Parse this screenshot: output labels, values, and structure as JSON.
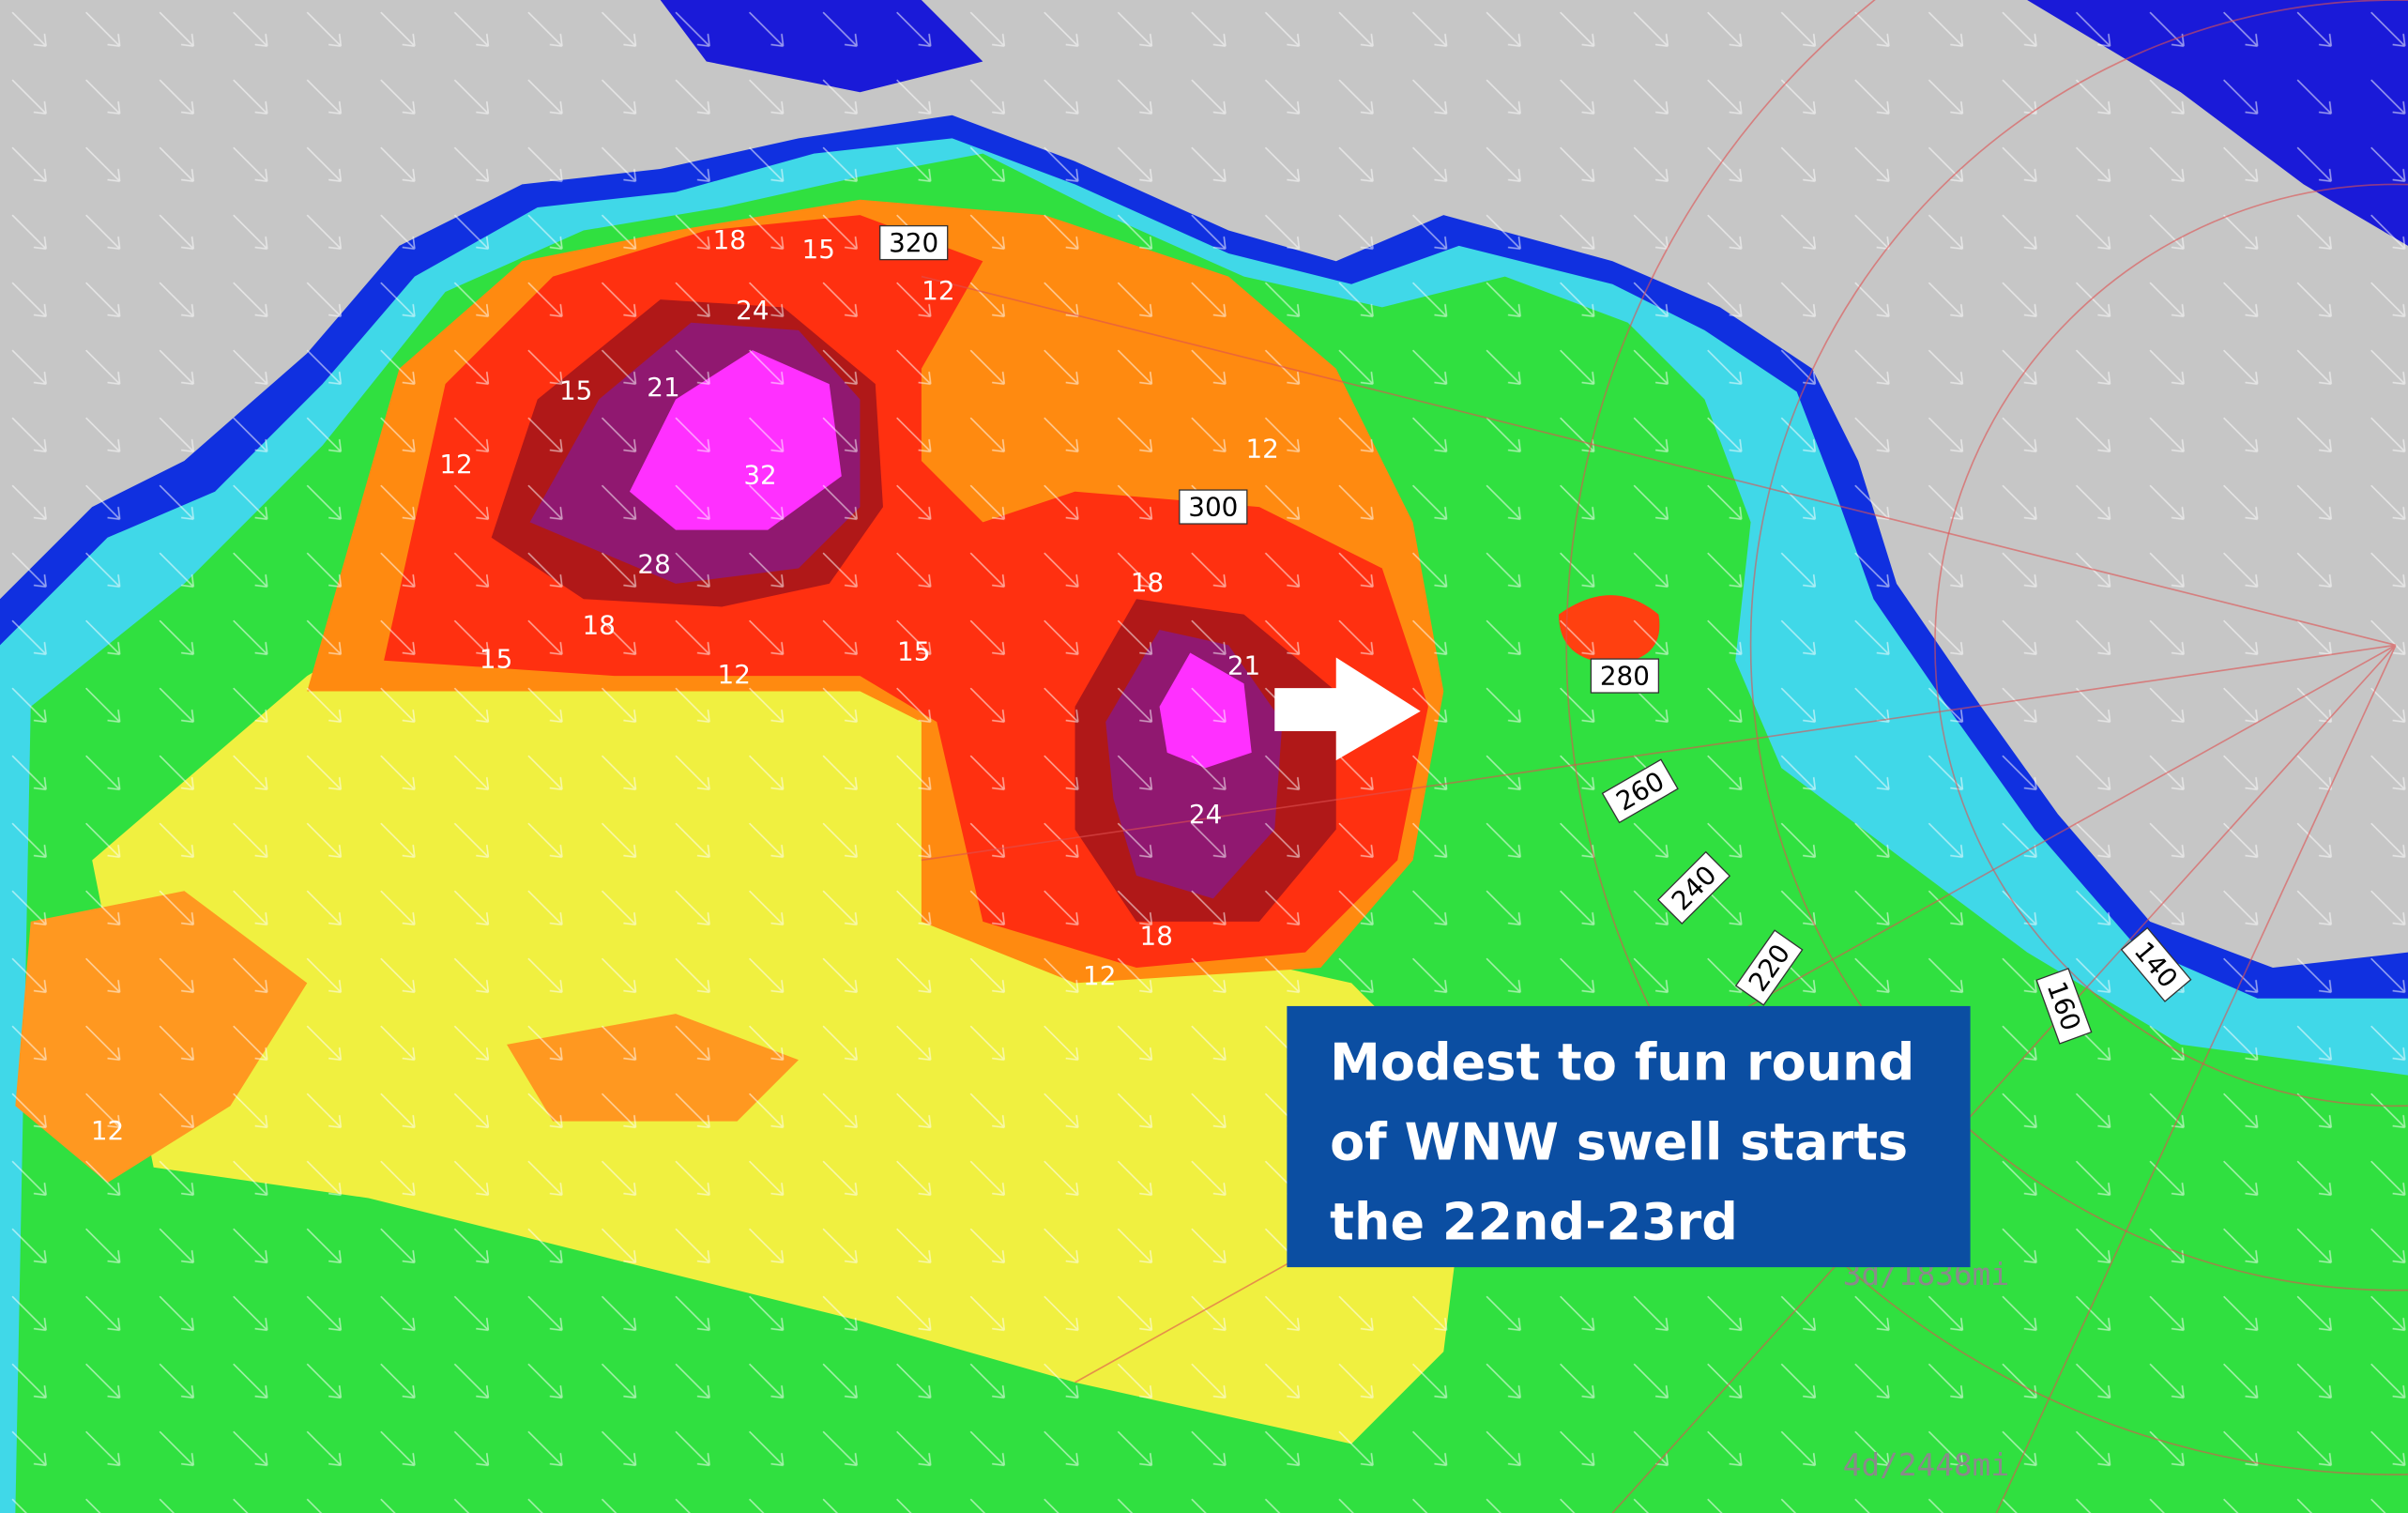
{
  "caption": {
    "lines": [
      "Modest to fun round",
      "of WNW swell starts",
      "the 22nd-23rd"
    ]
  },
  "contour_labels": [
    "18",
    "15",
    "12",
    "24",
    "21",
    "15",
    "12",
    "32",
    "28",
    "18",
    "15",
    "12",
    "15",
    "12",
    "18",
    "21",
    "24",
    "18",
    "12",
    "12"
  ],
  "direction_labels": [
    "320",
    "300",
    "280",
    "260",
    "240",
    "220",
    "160",
    "140"
  ],
  "distance_labels": [
    "3d/1836mi",
    "4d/2448mi"
  ]
}
